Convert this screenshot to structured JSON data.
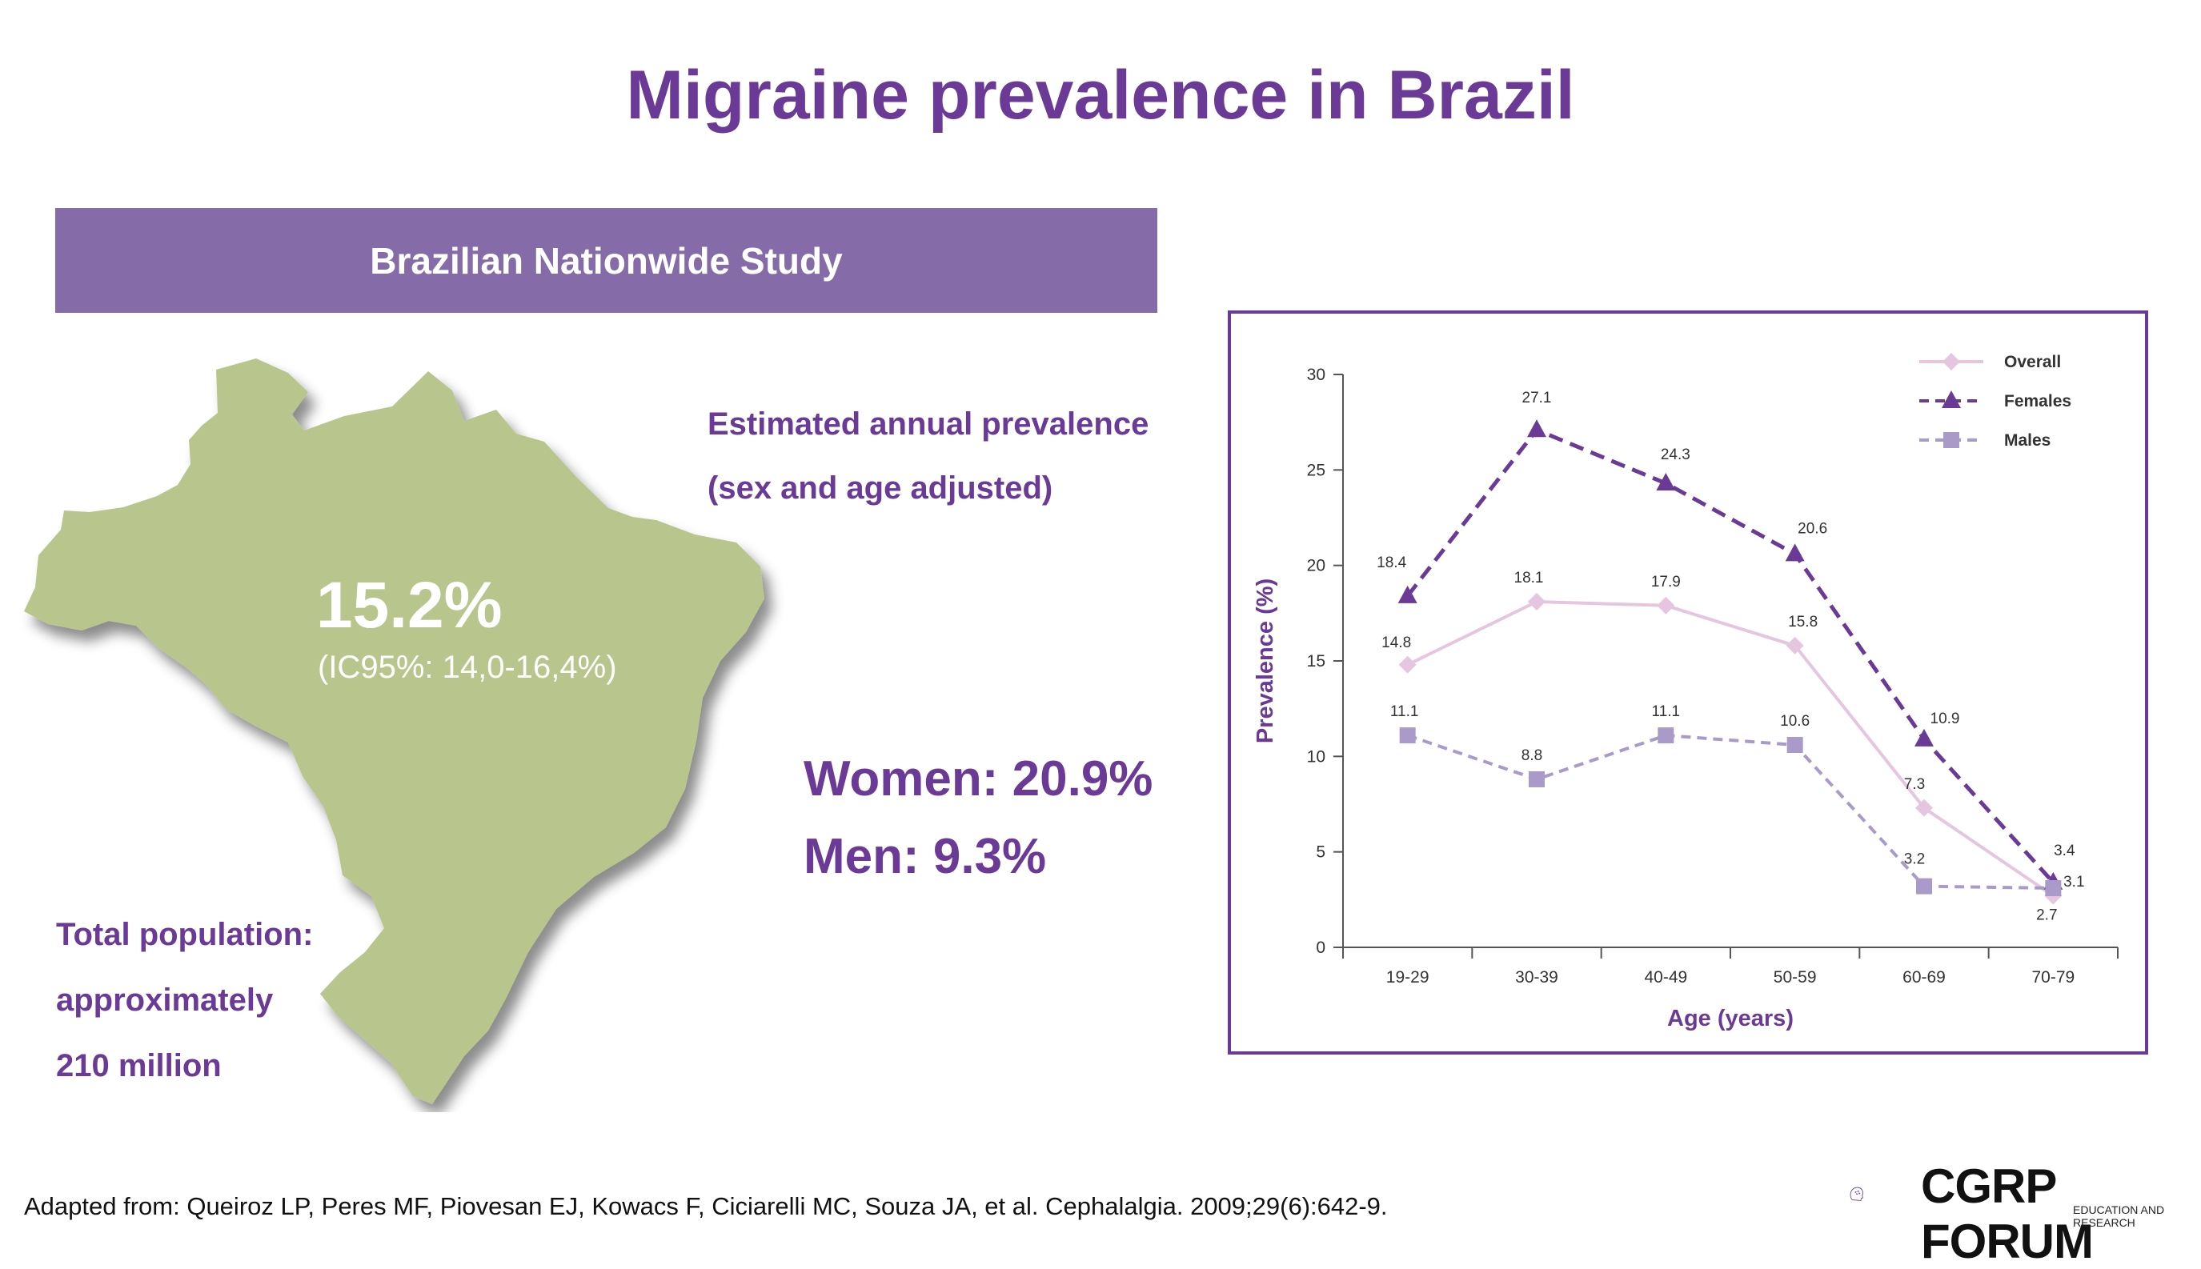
{
  "page": {
    "title": "Migraine prevalence in Brazil",
    "banner": "Brazilian Nationwide Study",
    "overall_pct": "15.2%",
    "ci": "(IC95%: 14,0-16,4%)",
    "estimated_line1": "Estimated annual prevalence",
    "estimated_line2": "(sex and age adjusted)",
    "women": "Women: 20.9%",
    "men": "Men: 9.3%",
    "population_line1": "Total population:",
    "population_line2": "approximately",
    "population_line3": "210 million",
    "footer": "Adapted from: Queiroz LP, Peres MF, Piovesan EJ, Kowacs F, Ciciarelli MC, Souza JA, et al. Cephalalgia. 2009;29(6):642-9.",
    "logo_text": "CGRP FORUM",
    "logo_sub": "EDUCATION AND RESEARCH"
  },
  "colors": {
    "title": "#6b3a96",
    "banner": "#866ba9",
    "map": "#b8c58d",
    "overall": "#e5c6de",
    "females": "#6b3a96",
    "males": "#a99ac9"
  },
  "chart_data": {
    "type": "line",
    "title": "",
    "xlabel": "Age (years)",
    "ylabel": "Prevalence (%)",
    "categories": [
      "19-29",
      "30-39",
      "40-49",
      "50-59",
      "60-69",
      "70-79"
    ],
    "ylim": [
      0,
      30
    ],
    "yticks": [
      0,
      5,
      10,
      15,
      20,
      25,
      30
    ],
    "grid": false,
    "legend_position": "top-right",
    "series": [
      {
        "name": "Overall",
        "values": [
          14.8,
          18.1,
          17.9,
          15.8,
          7.3,
          2.7
        ],
        "marker": "diamond",
        "dash": "solid",
        "color": "#e5c6de"
      },
      {
        "name": "Females",
        "values": [
          18.4,
          27.1,
          24.3,
          20.6,
          10.9,
          3.4
        ],
        "marker": "triangle",
        "dash": "dashed",
        "color": "#6b3a96"
      },
      {
        "name": "Males",
        "values": [
          11.1,
          8.8,
          11.1,
          10.6,
          3.2,
          3.1
        ],
        "marker": "square",
        "dash": "dashed",
        "color": "#a99ac9"
      }
    ]
  }
}
